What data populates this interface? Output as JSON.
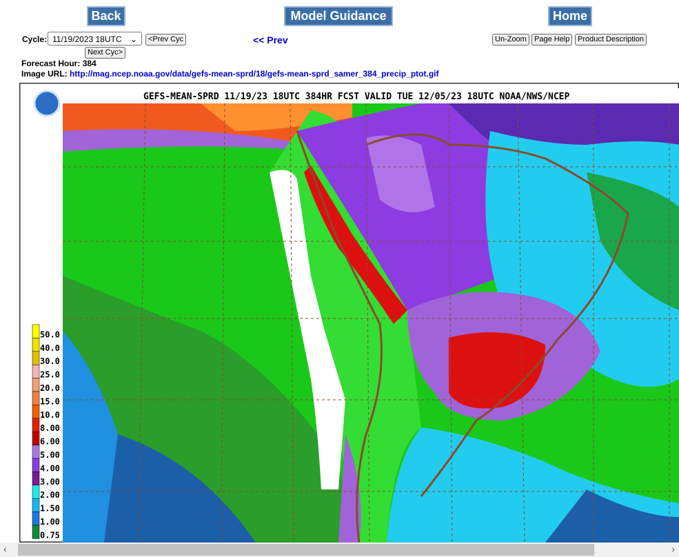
{
  "nav": {
    "back": "Back",
    "model_guidance": "Model Guidance",
    "home": "Home"
  },
  "controls": {
    "cycle_label": "Cycle:",
    "cycle_value": "11/19/2023 18UTC",
    "prev_cyc": "<Prev Cyc",
    "next_cyc": "Next Cyc>",
    "prev": "<< Prev",
    "un_zoom": "Un-Zoom",
    "page_help": "Page Help",
    "product_description": "Product Description"
  },
  "info": {
    "forecast_hour_label": "Forecast Hour:",
    "forecast_hour": "384",
    "image_url_label": "Image URL:",
    "image_url": "http://mag.ncep.noaa.gov/data/gefs-mean-sprd/18/gefs-mean-sprd_samer_384_precip_ptot.gif"
  },
  "map": {
    "title": "GEFS-MEAN-SPRD 11/19/23 18UTC 384HR FCST VALID TUE 12/05/23 18UTC NOAA/NWS/NCEP",
    "legend": [
      "50.0",
      "40.0",
      "30.0",
      "25.0",
      "20.0",
      "15.0",
      "10.0",
      "8.00",
      "6.00",
      "5.00",
      "4.00",
      "3.00",
      "2.00",
      "1.50",
      "1.00",
      "0.75"
    ]
  }
}
